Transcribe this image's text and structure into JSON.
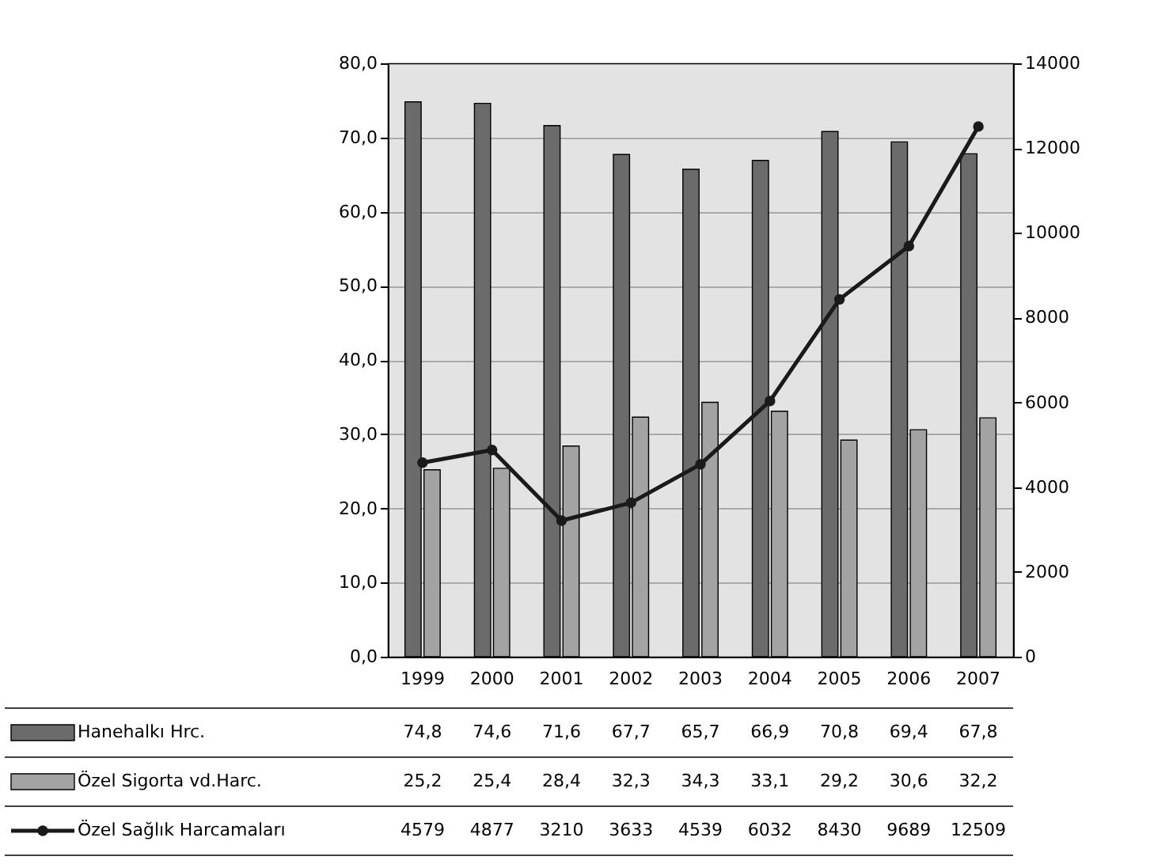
{
  "chart_data": {
    "type": "bar",
    "categories": [
      "1999",
      "2000",
      "2001",
      "2002",
      "2003",
      "2004",
      "2005",
      "2006",
      "2007"
    ],
    "series": [
      {
        "name": "Hanehalkı Hrc.",
        "color": "#6b6b6b",
        "values": [
          74.8,
          74.6,
          71.6,
          67.7,
          65.7,
          66.9,
          70.8,
          69.4,
          67.8
        ],
        "value_labels": [
          "74,8",
          "74,6",
          "71,6",
          "67,7",
          "65,7",
          "66,9",
          "70,8",
          "69,4",
          "67,8"
        ]
      },
      {
        "name": "Özel Sigorta vd.Harc.",
        "color": "#a3a3a3",
        "values": [
          25.2,
          25.4,
          28.4,
          32.3,
          34.3,
          33.1,
          29.2,
          30.6,
          32.2
        ],
        "value_labels": [
          "25,2",
          "25,4",
          "28,4",
          "32,3",
          "34,3",
          "33,1",
          "29,2",
          "30,6",
          "32,2"
        ]
      },
      {
        "name": "Özel Sağlık Harcamaları",
        "type": "line",
        "axis": "y2",
        "color": "#1a1a1a",
        "marker": "circle",
        "values": [
          4579,
          4877,
          3210,
          3633,
          4539,
          6032,
          8430,
          9689,
          12509
        ],
        "value_labels": [
          "4579",
          "4877",
          "3210",
          "3633",
          "4539",
          "6032",
          "8430",
          "9689",
          "12509"
        ]
      }
    ],
    "ylim": [
      0,
      80
    ],
    "yticks": [
      {
        "value": 0,
        "label": "0,0"
      },
      {
        "value": 10,
        "label": "10,0"
      },
      {
        "value": 20,
        "label": "20,0"
      },
      {
        "value": 30,
        "label": "30,0"
      },
      {
        "value": 40,
        "label": "40,0"
      },
      {
        "value": 50,
        "label": "50,0"
      },
      {
        "value": 60,
        "label": "60,0"
      },
      {
        "value": 70,
        "label": "70,0"
      },
      {
        "value": 80,
        "label": "80,0"
      }
    ],
    "y2lim": [
      0,
      14000
    ],
    "y2ticks": [
      0,
      2000,
      4000,
      6000,
      8000,
      10000,
      12000,
      14000
    ],
    "grid": "y",
    "legend": "bottom left"
  }
}
